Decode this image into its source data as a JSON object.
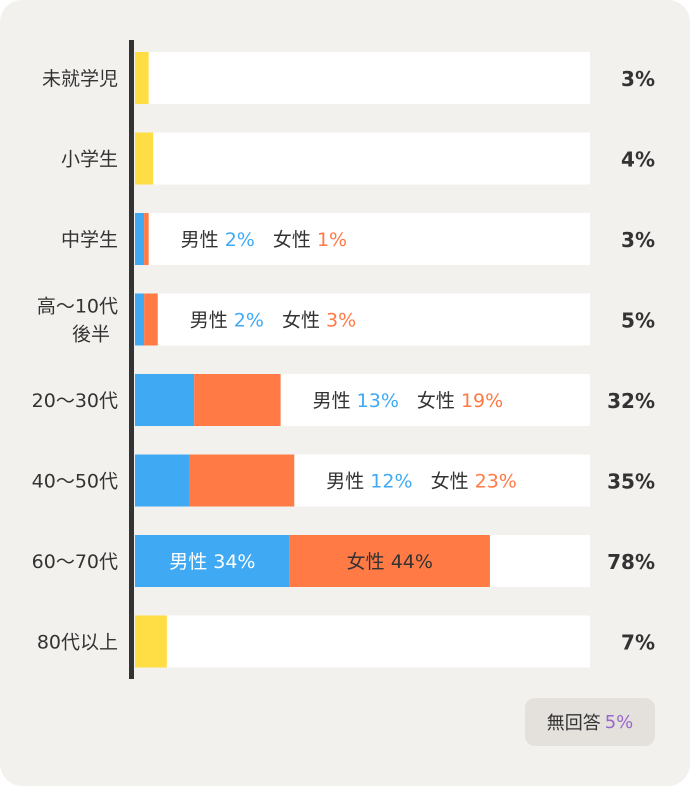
{
  "chart_data": {
    "type": "bar",
    "orientation": "horizontal",
    "stacked": true,
    "xlim": [
      0,
      100
    ],
    "colors": {
      "total": "#ffdd44",
      "male": "#3faaf3",
      "female": "#ff7a45",
      "track": "#ffffff",
      "axis": "#333333",
      "no_answer": "#9966cc"
    },
    "male_label": "男性",
    "female_label": "女性",
    "categories": [
      {
        "label_lines": [
          "未就学児"
        ],
        "total": 3,
        "total_text": "3%",
        "male": null,
        "female": null
      },
      {
        "label_lines": [
          "小学生"
        ],
        "total": 4,
        "total_text": "4%",
        "male": null,
        "female": null
      },
      {
        "label_lines": [
          "中学生"
        ],
        "total": 3,
        "total_text": "3%",
        "male": 2,
        "female": 1,
        "male_text": "2%",
        "female_text": "1%"
      },
      {
        "label_lines": [
          "高～10代",
          "後半"
        ],
        "total": 5,
        "total_text": "5%",
        "male": 2,
        "female": 3,
        "male_text": "2%",
        "female_text": "3%"
      },
      {
        "label_lines": [
          "20～30代"
        ],
        "total": 32,
        "total_text": "32%",
        "male": 13,
        "female": 19,
        "male_text": "13%",
        "female_text": "19%"
      },
      {
        "label_lines": [
          "40～50代"
        ],
        "total": 35,
        "total_text": "35%",
        "male": 12,
        "female": 23,
        "male_text": "12%",
        "female_text": "23%"
      },
      {
        "label_lines": [
          "60～70代"
        ],
        "total": 78,
        "total_text": "78%",
        "male": 34,
        "female": 44,
        "male_text": "34%",
        "female_text": "44%"
      },
      {
        "label_lines": [
          "80代以上"
        ],
        "total": 7,
        "total_text": "7%",
        "male": null,
        "female": null
      }
    ],
    "no_answer": {
      "label": "無回答",
      "value_text": "5%"
    }
  }
}
